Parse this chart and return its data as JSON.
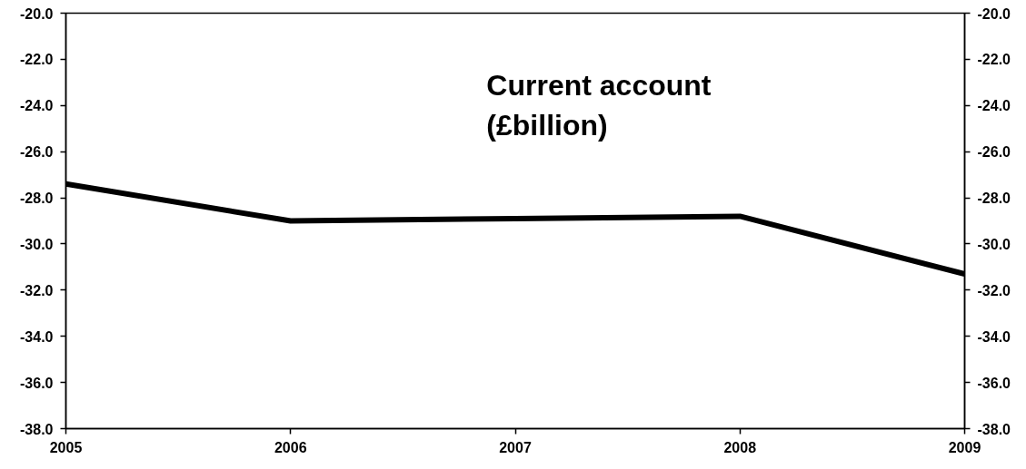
{
  "chart_data": {
    "type": "line",
    "title": "Current account (£billion)",
    "categories": [
      "2005",
      "2006",
      "2007",
      "2008",
      "2009"
    ],
    "series": [
      {
        "color": "#000000",
        "values": [
          -27.4,
          -29.0,
          -28.9,
          -28.8,
          -31.3
        ]
      }
    ],
    "ylim": [
      -38,
      -20
    ],
    "yticks": [
      {
        "value": -38,
        "label": "-38.0"
      },
      {
        "value": -36,
        "label": "-36.0"
      },
      {
        "value": -34,
        "label": "-34.0"
      },
      {
        "value": -32,
        "label": "-32.0"
      },
      {
        "value": -30,
        "label": "-30.0"
      },
      {
        "value": -28,
        "label": "-28.0"
      },
      {
        "value": -26,
        "label": "-26.0"
      },
      {
        "value": -24,
        "label": "-24.0"
      },
      {
        "value": -22,
        "label": "-22.0"
      },
      {
        "value": -20,
        "label": "-20.0"
      }
    ],
    "y2lim": [
      -38,
      -20
    ],
    "y2ticks": [
      {
        "value": -38,
        "label": "-38.0"
      },
      {
        "value": -36,
        "label": "-36.0"
      },
      {
        "value": -34,
        "label": "-34.0"
      },
      {
        "value": -32,
        "label": "-32.0"
      },
      {
        "value": -30,
        "label": "-30.0"
      },
      {
        "value": -28,
        "label": "-28.0"
      },
      {
        "value": -26,
        "label": "-26.0"
      },
      {
        "value": -24,
        "label": "-24.0"
      },
      {
        "value": -22,
        "label": "-22.0"
      },
      {
        "value": -20,
        "label": "-20.0"
      }
    ],
    "line_style": "solid"
  }
}
